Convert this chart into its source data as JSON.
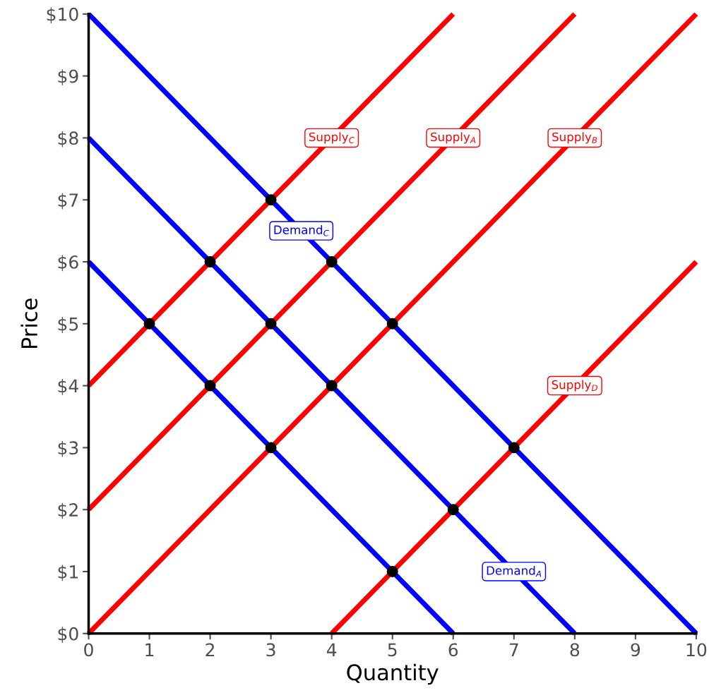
{
  "chart_data": {
    "type": "line",
    "xlabel": "Quantity",
    "ylabel": "Price",
    "xlim": [
      0,
      10
    ],
    "ylim": [
      0,
      10
    ],
    "xticks": [
      0,
      1,
      2,
      3,
      4,
      5,
      6,
      7,
      8,
      9,
      10
    ],
    "yticks": [
      {
        "value": 0,
        "label": "$0"
      },
      {
        "value": 1,
        "label": "$1"
      },
      {
        "value": 2,
        "label": "$2"
      },
      {
        "value": 3,
        "label": "$3"
      },
      {
        "value": 4,
        "label": "$4"
      },
      {
        "value": 5,
        "label": "$5"
      },
      {
        "value": 6,
        "label": "$6"
      },
      {
        "value": 7,
        "label": "$7"
      },
      {
        "value": 8,
        "label": "$8"
      },
      {
        "value": 9,
        "label": "$9"
      },
      {
        "value": 10,
        "label": "$10"
      }
    ],
    "grid": false,
    "legend": false,
    "line_style": "solid",
    "series": [
      {
        "color": "#ff0000",
        "x": [
          0,
          6
        ],
        "values": [
          4,
          10
        ]
      },
      {
        "color": "#ff0000",
        "x": [
          0,
          8
        ],
        "values": [
          2,
          10
        ]
      },
      {
        "color": "#ff0000",
        "x": [
          0,
          10
        ],
        "values": [
          0,
          10
        ]
      },
      {
        "color": "#ff0000",
        "x": [
          4,
          10
        ],
        "values": [
          0,
          6
        ]
      },
      {
        "color": "#0000ff",
        "x": [
          0,
          10
        ],
        "values": [
          10,
          0
        ]
      },
      {
        "color": "#0000ff",
        "x": [
          0,
          8
        ],
        "values": [
          8,
          0
        ]
      },
      {
        "color": "#0000ff",
        "x": [
          0,
          6
        ],
        "values": [
          6,
          0
        ]
      },
      {
        "type": "scatter",
        "marker": "circle",
        "color": "#000000",
        "x": [
          3,
          2,
          4,
          1,
          3,
          5,
          2,
          4,
          3,
          7,
          6,
          5
        ],
        "values": [
          7,
          6,
          6,
          5,
          5,
          5,
          4,
          4,
          3,
          3,
          2,
          1
        ]
      }
    ],
    "annotations": [
      {
        "text": "Supply$_{C}$",
        "x": 4,
        "y": 8
      },
      {
        "text": "Supply$_{A}$",
        "x": 6,
        "y": 8
      },
      {
        "text": "Supply$_{B}$",
        "x": 8,
        "y": 8
      },
      {
        "text": "Supply$_{D}$",
        "x": 8,
        "y": 4
      },
      {
        "text": "Demand$_{C}$",
        "x": 3.5,
        "y": 6.5
      },
      {
        "text": "Demand$_{A}$",
        "x": 7,
        "y": 1
      }
    ]
  }
}
